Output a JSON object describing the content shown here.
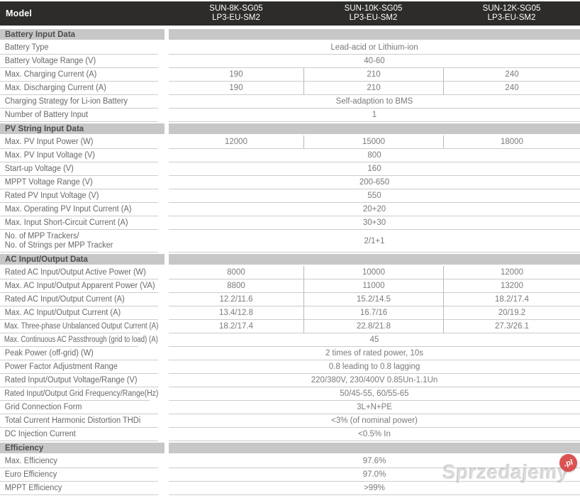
{
  "header": {
    "model_label": "Model",
    "models": [
      {
        "name": "SUN-8K-SG05",
        "series": "LP3-EU-SM2"
      },
      {
        "name": "SUN-10K-SG05",
        "series": "LP3-EU-SM2"
      },
      {
        "name": "SUN-12K-SG05",
        "series": "LP3-EU-SM2"
      }
    ]
  },
  "colors": {
    "header_bg": "#2d2c2b",
    "header_text": "#ffffff",
    "section_bg": "#c7c7c7",
    "section_text": "#4c4c4c",
    "label_text": "#686868",
    "value_text": "#7a7a7a",
    "row_border": "#cccccc",
    "col_sep": "#b8b8b8",
    "watermark_red": "#d84444"
  },
  "sections": [
    {
      "title": "Battery Input Data",
      "rows": [
        {
          "label": "Battery Type",
          "value": "Lead-acid or Lithium-ion"
        },
        {
          "label": "Battery Voltage Range (V)",
          "value": "40-60"
        },
        {
          "label": "Max. Charging Current (A)",
          "values": [
            "190",
            "210",
            "240"
          ]
        },
        {
          "label": "Max. Discharging Current (A)",
          "values": [
            "190",
            "210",
            "240"
          ]
        },
        {
          "label": "Charging Strategy for Li-ion Battery",
          "value": "Self-adaption to BMS"
        },
        {
          "label": "Number of Battery Input",
          "value": "1"
        }
      ]
    },
    {
      "title": "PV String Input Data",
      "rows": [
        {
          "label": "Max. PV Input Power (W)",
          "values": [
            "12000",
            "15000",
            "18000"
          ]
        },
        {
          "label": "Max. PV Input Voltage (V)",
          "value": "800"
        },
        {
          "label": "Start-up Voltage (V)",
          "value": "160"
        },
        {
          "label": "MPPT Voltage Range (V)",
          "value": "200-650"
        },
        {
          "label": "Rated PV Input Voltage (V)",
          "value": "550"
        },
        {
          "label": "Max. Operating PV Input Current (A)",
          "value": "20+20"
        },
        {
          "label": "Max. Input Short-Circuit Current (A)",
          "value": "30+30"
        },
        {
          "label": "No. of MPP Trackers/",
          "label2": "No. of Strings per MPP Tracker",
          "value": "2/1+1"
        }
      ]
    },
    {
      "title": "AC Input/Output Data",
      "rows": [
        {
          "label": "Rated AC Input/Output Active Power (W)",
          "values": [
            "8000",
            "10000",
            "12000"
          ]
        },
        {
          "label": "Max. AC Input/Output Apparent Power (VA)",
          "values": [
            "8800",
            "11000",
            "13200"
          ]
        },
        {
          "label": "Rated AC Input/Output Current (A)",
          "values": [
            "12.2/11.6",
            "15.2/14.5",
            "18.2/17.4"
          ]
        },
        {
          "label": "Max. AC Input/Output Current (A)",
          "values": [
            "13.4/12.8",
            "16.7/16",
            "20/19.2"
          ]
        },
        {
          "label": "Max. Three-phase Unbalanced Output Current (A)",
          "values": [
            "18.2/17.4",
            "22.8/21.8",
            "27.3/26.1"
          ]
        },
        {
          "label": "Max. Continuous AC Passthrough (grid to load) (A)",
          "value": "45"
        },
        {
          "label": "Peak Power (off-grid) (W)",
          "value": "2 times of rated power, 10s"
        },
        {
          "label": "Power Factor Adjustment Range",
          "value": "0.8 leading to 0.8 lagging"
        },
        {
          "label": "Rated Input/Output Voltage/Range (V)",
          "value": "220/380V, 230/400V 0.85Un-1.1Un"
        },
        {
          "label": "Rated Input/Output Grid Frequency/Range(Hz)",
          "value": "50/45-55, 60/55-65"
        },
        {
          "label": "Grid Connection Form",
          "value": "3L+N+PE"
        },
        {
          "label": "Total Current Harmonic Distortion THDi",
          "value": "<3% (of nominal power)"
        },
        {
          "label": "DC Injection Current",
          "value": "<0.5% In"
        }
      ]
    },
    {
      "title": "Efficiency",
      "rows": [
        {
          "label": "Max. Efficiency",
          "value": "97.6%"
        },
        {
          "label": "Euro Efficiency",
          "value": "97.0%"
        },
        {
          "label": "MPPT Efficiency",
          "value": ">99%"
        }
      ]
    }
  ],
  "watermark": {
    "text": "Sprzedajemy",
    "badge": ".pl"
  }
}
